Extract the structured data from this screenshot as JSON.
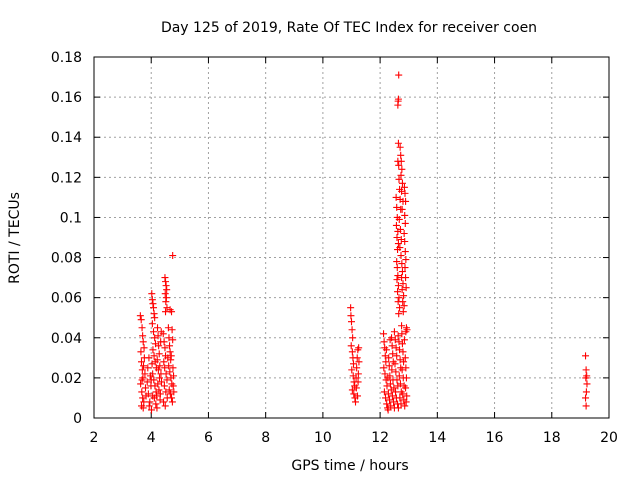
{
  "chart_data": {
    "type": "scatter",
    "title": "Day 125 of 2019, Rate Of TEC Index for receiver coen",
    "xlabel": "GPS time / hours",
    "ylabel": "ROTI / TECUs",
    "xlim": [
      2,
      20
    ],
    "ylim": [
      0,
      0.18
    ],
    "xticks": [
      "2",
      "4",
      "6",
      "8",
      "10",
      "12",
      "14",
      "16",
      "18",
      "20"
    ],
    "yticks": [
      "0",
      "0.02",
      "0.04",
      "0.06",
      "0.08",
      "0.1",
      "0.12",
      "0.14",
      "0.16",
      "0.18"
    ],
    "grid": true,
    "marker": "+",
    "color": "#ff0000",
    "points": [
      [
        3.62,
        0.051
      ],
      [
        3.65,
        0.049
      ],
      [
        3.68,
        0.045
      ],
      [
        3.7,
        0.041
      ],
      [
        3.72,
        0.038
      ],
      [
        3.64,
        0.033
      ],
      [
        3.66,
        0.028
      ],
      [
        3.69,
        0.024
      ],
      [
        3.71,
        0.02
      ],
      [
        3.63,
        0.017
      ],
      [
        3.67,
        0.013
      ],
      [
        3.7,
        0.01
      ],
      [
        3.74,
        0.008
      ],
      [
        3.66,
        0.006
      ],
      [
        3.72,
        0.005
      ],
      [
        3.76,
        0.03
      ],
      [
        3.78,
        0.022
      ],
      [
        3.8,
        0.015
      ],
      [
        3.82,
        0.011
      ],
      [
        3.75,
        0.035
      ],
      [
        3.68,
        0.019
      ],
      [
        3.73,
        0.026
      ],
      [
        3.86,
        0.018
      ],
      [
        3.88,
        0.025
      ],
      [
        3.9,
        0.012
      ],
      [
        3.92,
        0.03
      ],
      [
        3.95,
        0.008
      ],
      [
        3.97,
        0.021
      ],
      [
        3.99,
        0.016
      ],
      [
        4.01,
        0.004
      ],
      [
        4.03,
        0.027
      ],
      [
        4.05,
        0.011
      ],
      [
        3.93,
        0.006
      ],
      [
        4.0,
        0.019
      ],
      [
        4.02,
        0.062
      ],
      [
        4.04,
        0.059
      ],
      [
        4.06,
        0.057
      ],
      [
        4.08,
        0.055
      ],
      [
        4.1,
        0.052
      ],
      [
        4.12,
        0.05
      ],
      [
        4.04,
        0.047
      ],
      [
        4.08,
        0.043
      ],
      [
        4.12,
        0.04
      ],
      [
        4.15,
        0.037
      ],
      [
        4.06,
        0.034
      ],
      [
        4.1,
        0.031
      ],
      [
        4.14,
        0.028
      ],
      [
        4.18,
        0.025
      ],
      [
        4.05,
        0.022
      ],
      [
        4.09,
        0.019
      ],
      [
        4.13,
        0.016
      ],
      [
        4.17,
        0.013
      ],
      [
        4.11,
        0.01
      ],
      [
        4.16,
        0.007
      ],
      [
        4.2,
        0.005
      ],
      [
        4.22,
        0.045
      ],
      [
        4.24,
        0.041
      ],
      [
        4.26,
        0.036
      ],
      [
        4.28,
        0.032
      ],
      [
        4.21,
        0.029
      ],
      [
        4.25,
        0.024
      ],
      [
        4.29,
        0.02
      ],
      [
        4.23,
        0.017
      ],
      [
        4.27,
        0.014
      ],
      [
        4.19,
        0.011
      ],
      [
        4.31,
        0.009
      ],
      [
        4.33,
        0.038
      ],
      [
        4.35,
        0.043
      ],
      [
        4.3,
        0.026
      ],
      [
        4.34,
        0.022
      ],
      [
        4.36,
        0.018
      ],
      [
        4.32,
        0.012
      ],
      [
        4.42,
        0.042
      ],
      [
        4.45,
        0.038
      ],
      [
        4.48,
        0.035
      ],
      [
        4.5,
        0.031
      ],
      [
        4.44,
        0.028
      ],
      [
        4.47,
        0.025
      ],
      [
        4.52,
        0.022
      ],
      [
        4.55,
        0.019
      ],
      [
        4.46,
        0.016
      ],
      [
        4.51,
        0.013
      ],
      [
        4.56,
        0.01
      ],
      [
        4.43,
        0.008
      ],
      [
        4.58,
        0.03
      ],
      [
        4.49,
        0.006
      ],
      [
        4.48,
        0.07
      ],
      [
        4.5,
        0.068
      ],
      [
        4.52,
        0.066
      ],
      [
        4.54,
        0.064
      ],
      [
        4.49,
        0.062
      ],
      [
        4.53,
        0.06
      ],
      [
        4.51,
        0.058
      ],
      [
        4.55,
        0.055
      ],
      [
        4.5,
        0.053
      ],
      [
        4.6,
        0.045
      ],
      [
        4.62,
        0.04
      ],
      [
        4.64,
        0.036
      ],
      [
        4.66,
        0.033
      ],
      [
        4.68,
        0.029
      ],
      [
        4.61,
        0.026
      ],
      [
        4.65,
        0.023
      ],
      [
        4.69,
        0.02
      ],
      [
        4.72,
        0.017
      ],
      [
        4.63,
        0.014
      ],
      [
        4.67,
        0.012
      ],
      [
        4.71,
        0.01
      ],
      [
        4.74,
        0.008
      ],
      [
        4.76,
        0.025
      ],
      [
        4.78,
        0.021
      ],
      [
        4.7,
        0.031
      ],
      [
        4.73,
        0.044
      ],
      [
        4.75,
        0.039
      ],
      [
        4.77,
        0.016
      ],
      [
        4.66,
        0.054
      ],
      [
        4.71,
        0.053
      ],
      [
        4.75,
        0.081
      ],
      [
        4.79,
        0.013
      ],
      [
        10.97,
        0.055
      ],
      [
        10.98,
        0.051
      ],
      [
        11.0,
        0.048
      ],
      [
        11.02,
        0.044
      ],
      [
        11.04,
        0.04
      ],
      [
        10.99,
        0.036
      ],
      [
        11.03,
        0.033
      ],
      [
        11.05,
        0.03
      ],
      [
        11.07,
        0.027
      ],
      [
        11.01,
        0.024
      ],
      [
        11.06,
        0.021
      ],
      [
        11.09,
        0.018
      ],
      [
        11.11,
        0.016
      ],
      [
        11.03,
        0.014
      ],
      [
        11.08,
        0.012
      ],
      [
        11.12,
        0.01
      ],
      [
        11.14,
        0.008
      ],
      [
        11.16,
        0.02
      ],
      [
        11.18,
        0.025
      ],
      [
        11.2,
        0.03
      ],
      [
        11.22,
        0.034
      ],
      [
        11.17,
        0.015
      ],
      [
        11.21,
        0.011
      ],
      [
        11.24,
        0.022
      ],
      [
        11.26,
        0.028
      ],
      [
        11.23,
        0.018
      ],
      [
        11.25,
        0.035
      ],
      [
        12.12,
        0.042
      ],
      [
        12.14,
        0.038
      ],
      [
        12.16,
        0.035
      ],
      [
        12.18,
        0.031
      ],
      [
        12.2,
        0.028
      ],
      [
        12.13,
        0.025
      ],
      [
        12.17,
        0.022
      ],
      [
        12.21,
        0.019
      ],
      [
        12.24,
        0.016
      ],
      [
        12.15,
        0.013
      ],
      [
        12.19,
        0.01
      ],
      [
        12.23,
        0.007
      ],
      [
        12.26,
        0.005
      ],
      [
        12.28,
        0.004
      ],
      [
        12.3,
        0.03
      ],
      [
        12.32,
        0.026
      ],
      [
        12.34,
        0.021
      ],
      [
        12.36,
        0.017
      ],
      [
        12.29,
        0.012
      ],
      [
        12.33,
        0.009
      ],
      [
        12.37,
        0.006
      ],
      [
        12.4,
        0.04
      ],
      [
        12.42,
        0.036
      ],
      [
        12.44,
        0.032
      ],
      [
        12.46,
        0.028
      ],
      [
        12.41,
        0.024
      ],
      [
        12.45,
        0.019
      ],
      [
        12.48,
        0.015
      ],
      [
        12.43,
        0.011
      ],
      [
        12.47,
        0.008
      ],
      [
        12.5,
        0.005
      ],
      [
        12.22,
        0.034
      ],
      [
        12.27,
        0.02
      ],
      [
        12.35,
        0.039
      ],
      [
        12.39,
        0.014
      ],
      [
        12.5,
        0.043
      ],
      [
        12.53,
        0.039
      ],
      [
        12.56,
        0.035
      ],
      [
        12.58,
        0.031
      ],
      [
        12.52,
        0.027
      ],
      [
        12.55,
        0.023
      ],
      [
        12.59,
        0.019
      ],
      [
        12.62,
        0.016
      ],
      [
        12.54,
        0.013
      ],
      [
        12.57,
        0.01
      ],
      [
        12.61,
        0.007
      ],
      [
        12.64,
        0.005
      ],
      [
        12.66,
        0.038
      ],
      [
        12.68,
        0.034
      ],
      [
        12.7,
        0.029
      ],
      [
        12.72,
        0.025
      ],
      [
        12.67,
        0.021
      ],
      [
        12.71,
        0.017
      ],
      [
        12.74,
        0.013
      ],
      [
        12.69,
        0.01
      ],
      [
        12.73,
        0.007
      ],
      [
        12.76,
        0.042
      ],
      [
        12.78,
        0.037
      ],
      [
        12.8,
        0.033
      ],
      [
        12.82,
        0.028
      ],
      [
        12.77,
        0.024
      ],
      [
        12.81,
        0.02
      ],
      [
        12.84,
        0.016
      ],
      [
        12.79,
        0.012
      ],
      [
        12.83,
        0.009
      ],
      [
        12.86,
        0.006
      ],
      [
        12.88,
        0.03
      ],
      [
        12.9,
        0.025
      ],
      [
        12.92,
        0.02
      ],
      [
        12.89,
        0.015
      ],
      [
        12.93,
        0.011
      ],
      [
        12.91,
        0.008
      ],
      [
        12.63,
        0.041
      ],
      [
        12.75,
        0.046
      ],
      [
        12.85,
        0.039
      ],
      [
        12.58,
        0.078
      ],
      [
        12.6,
        0.075
      ],
      [
        12.62,
        0.071
      ],
      [
        12.59,
        0.069
      ],
      [
        12.64,
        0.066
      ],
      [
        12.61,
        0.063
      ],
      [
        12.66,
        0.06
      ],
      [
        12.63,
        0.058
      ],
      [
        12.68,
        0.055
      ],
      [
        12.65,
        0.052
      ],
      [
        12.56,
        0.11
      ],
      [
        12.58,
        0.105
      ],
      [
        12.6,
        0.1
      ],
      [
        12.57,
        0.096
      ],
      [
        12.62,
        0.093
      ],
      [
        12.59,
        0.09
      ],
      [
        12.64,
        0.087
      ],
      [
        12.61,
        0.084
      ],
      [
        12.66,
        0.119
      ],
      [
        12.68,
        0.114
      ],
      [
        12.7,
        0.109
      ],
      [
        12.72,
        0.104
      ],
      [
        12.67,
        0.099
      ],
      [
        12.71,
        0.094
      ],
      [
        12.74,
        0.089
      ],
      [
        12.69,
        0.085
      ],
      [
        12.73,
        0.081
      ],
      [
        12.76,
        0.077
      ],
      [
        12.78,
        0.073
      ],
      [
        12.75,
        0.07
      ],
      [
        12.8,
        0.067
      ],
      [
        12.77,
        0.064
      ],
      [
        12.82,
        0.061
      ],
      [
        12.79,
        0.058
      ],
      [
        12.84,
        0.056
      ],
      [
        12.81,
        0.053
      ],
      [
        12.7,
        0.135
      ],
      [
        12.72,
        0.131
      ],
      [
        12.74,
        0.128
      ],
      [
        12.76,
        0.124
      ],
      [
        12.73,
        0.121
      ],
      [
        12.78,
        0.117
      ],
      [
        12.75,
        0.113
      ],
      [
        12.8,
        0.108
      ],
      [
        12.77,
        0.104
      ],
      [
        12.64,
        0.137
      ],
      [
        12.62,
        0.128
      ],
      [
        12.65,
        0.126
      ],
      [
        12.62,
        0.156
      ],
      [
        12.63,
        0.158
      ],
      [
        12.64,
        0.159
      ],
      [
        12.65,
        0.171
      ],
      [
        12.85,
        0.115
      ],
      [
        12.87,
        0.112
      ],
      [
        12.89,
        0.108
      ],
      [
        12.86,
        0.101
      ],
      [
        12.88,
        0.097
      ],
      [
        12.84,
        0.092
      ],
      [
        12.86,
        0.088
      ],
      [
        12.88,
        0.083
      ],
      [
        12.9,
        0.079
      ],
      [
        12.87,
        0.075
      ],
      [
        12.89,
        0.07
      ],
      [
        12.91,
        0.065
      ],
      [
        12.92,
        0.045
      ],
      [
        12.94,
        0.044
      ],
      [
        12.9,
        0.043
      ],
      [
        19.18,
        0.031
      ],
      [
        19.2,
        0.024
      ],
      [
        19.22,
        0.021
      ],
      [
        19.19,
        0.02
      ],
      [
        19.23,
        0.017
      ],
      [
        19.21,
        0.013
      ],
      [
        19.18,
        0.01
      ],
      [
        19.2,
        0.006
      ]
    ]
  }
}
